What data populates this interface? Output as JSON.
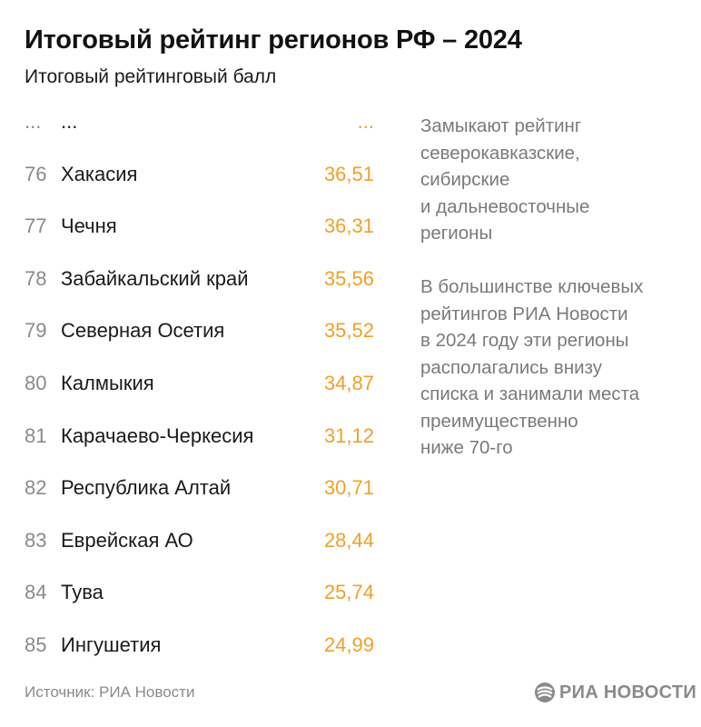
{
  "header": {
    "title": "Итоговый рейтинг регионов РФ – 2024",
    "subtitle": "Итоговый рейтинговый балл"
  },
  "chart_data": {
    "type": "table",
    "title": "Итоговый рейтинг регионов РФ – 2024",
    "subtitle": "Итоговый рейтинговый балл",
    "rows": [
      {
        "rank": "...",
        "region": "...",
        "score": "..."
      },
      {
        "rank": "76",
        "region": "Хакасия",
        "score": "36,51"
      },
      {
        "rank": "77",
        "region": "Чечня",
        "score": "36,31"
      },
      {
        "rank": "78",
        "region": "Забайкальский край",
        "score": "35,56"
      },
      {
        "rank": "79",
        "region": "Северная Осетия",
        "score": "35,52"
      },
      {
        "rank": "80",
        "region": "Калмыкия",
        "score": "34,87"
      },
      {
        "rank": "81",
        "region": "Карачаево-Черкесия",
        "score": "31,12"
      },
      {
        "rank": "82",
        "region": "Республика Алтай",
        "score": "30,71"
      },
      {
        "rank": "83",
        "region": "Еврейская АО",
        "score": "28,44"
      },
      {
        "rank": "84",
        "region": "Тува",
        "score": "25,74"
      },
      {
        "rank": "85",
        "region": "Ингушетия",
        "score": "24,99"
      }
    ],
    "score_color": "#f0a028",
    "rank_color": "#8a8a8a"
  },
  "notes": [
    "Замыкают рейтинг\nсеверокавказские,\nсибирские\nи дальневосточные\nрегионы",
    "В большинстве ключевых\nрейтингов РИА Новости\nв 2024 году эти регионы\nрасполагались внизу\nсписка и занимали места\nпреимущественно\nниже 70-го"
  ],
  "footer": {
    "source": "Источник: РИА Новости",
    "logo_text": "РИА НОВОСТИ",
    "logo_icon": "ria-logo-icon"
  }
}
